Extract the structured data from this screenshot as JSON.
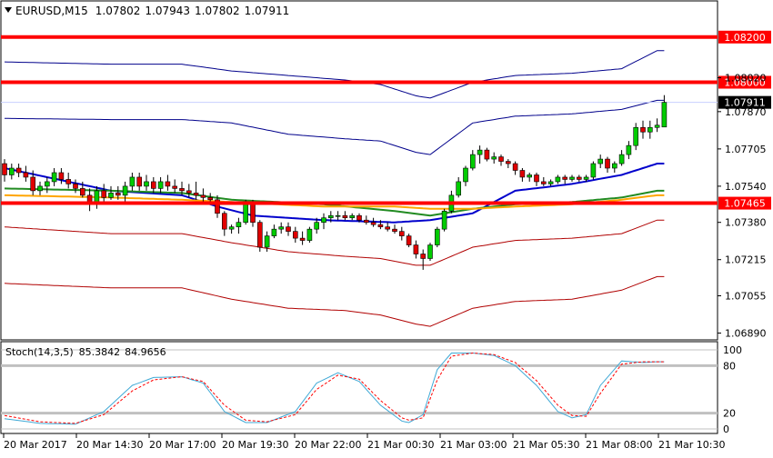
{
  "header": {
    "menu_icon": "triangle-down-icon",
    "symbol": "EURUSD,M15",
    "ohlc": [
      "1.07802",
      "1.07943",
      "1.07802",
      "1.07911"
    ]
  },
  "price_axis": {
    "ticks": [
      "1.08020",
      "1.07870",
      "1.07705",
      "1.07540",
      "1.07380",
      "1.07215",
      "1.07055",
      "1.06890"
    ],
    "current_price": "1.07911"
  },
  "levels": [
    {
      "price": 1.082,
      "label": "1.08200"
    },
    {
      "price": 1.08,
      "label": "1.08000"
    },
    {
      "price": 1.07465,
      "label": "1.07465"
    }
  ],
  "oscillator": {
    "title": "Stoch(14,3,5)",
    "main_value": "85.3842",
    "signal_value": "84.9656",
    "levels": [
      "100",
      "80",
      "20",
      "0"
    ]
  },
  "time_axis": [
    "20 Mar 2017",
    "20 Mar 14:30",
    "20 Mar 17:00",
    "20 Mar 19:30",
    "20 Mar 22:00",
    "21 Mar 00:30",
    "21 Mar 03:00",
    "21 Mar 05:30",
    "21 Mar 08:00",
    "21 Mar 10:30"
  ],
  "colors": {
    "level_line": "#ff0000",
    "bull_candle": "#00cc00",
    "bear_candle": "#e00000",
    "candle_wick": "#000000",
    "upper_envelope": "#00008b",
    "lower_envelope": "#b00000",
    "fast_ma": "#0000cc",
    "mid_ma": "#228b22",
    "slow_ma": "#ffa500",
    "stoch_main": "#3fa9d6",
    "stoch_signal": "#ff0000",
    "grid": "#c0c0c0"
  },
  "chart_data": {
    "type": "candlestick",
    "candles": [
      [
        1.0764,
        1.0766,
        1.0756,
        1.0759
      ],
      [
        1.0759,
        1.0764,
        1.0757,
        1.0762
      ],
      [
        1.0762,
        1.0764,
        1.0758,
        1.076
      ],
      [
        1.076,
        1.0763,
        1.0756,
        1.0758
      ],
      [
        1.0758,
        1.0761,
        1.075,
        1.0752
      ],
      [
        1.0752,
        1.0756,
        1.075,
        1.0754
      ],
      [
        1.0754,
        1.0758,
        1.0751,
        1.0756
      ],
      [
        1.0756,
        1.0762,
        1.0754,
        1.076
      ],
      [
        1.076,
        1.0762,
        1.0755,
        1.0757
      ],
      [
        1.0757,
        1.076,
        1.0753,
        1.0755
      ],
      [
        1.0755,
        1.0757,
        1.0751,
        1.0753
      ],
      [
        1.0753,
        1.0756,
        1.0749,
        1.075
      ],
      [
        1.075,
        1.0753,
        1.0743,
        1.0746
      ],
      [
        1.0746,
        1.0754,
        1.0744,
        1.0752
      ],
      [
        1.0752,
        1.0755,
        1.0747,
        1.0749
      ],
      [
        1.0749,
        1.0754,
        1.0748,
        1.0751
      ],
      [
        1.0751,
        1.0754,
        1.0748,
        1.075
      ],
      [
        1.075,
        1.0756,
        1.0746,
        1.0754
      ],
      [
        1.0754,
        1.076,
        1.0752,
        1.0758
      ],
      [
        1.0758,
        1.076,
        1.0752,
        1.0754
      ],
      [
        1.0754,
        1.0759,
        1.0752,
        1.0756
      ],
      [
        1.0756,
        1.0758,
        1.0751,
        1.0753
      ],
      [
        1.0753,
        1.0758,
        1.0751,
        1.0756
      ],
      [
        1.0756,
        1.0759,
        1.0752,
        1.0754
      ],
      [
        1.0754,
        1.0757,
        1.0751,
        1.0753
      ],
      [
        1.0753,
        1.0756,
        1.075,
        1.0752
      ],
      [
        1.0752,
        1.0755,
        1.0749,
        1.0751
      ],
      [
        1.0751,
        1.0756,
        1.0748,
        1.075
      ],
      [
        1.075,
        1.0753,
        1.0747,
        1.0749
      ],
      [
        1.0749,
        1.0751,
        1.0747,
        1.0748
      ],
      [
        1.0748,
        1.075,
        1.074,
        1.0742
      ],
      [
        1.0742,
        1.0743,
        1.0732,
        1.0735
      ],
      [
        1.0735,
        1.0737,
        1.0733,
        1.0736
      ],
      [
        1.0736,
        1.074,
        1.0733,
        1.0738
      ],
      [
        1.0738,
        1.0748,
        1.0737,
        1.0746
      ],
      [
        1.0746,
        1.0748,
        1.0736,
        1.0738
      ],
      [
        1.0738,
        1.0739,
        1.0725,
        1.0727
      ],
      [
        1.0727,
        1.0734,
        1.0725,
        1.0732
      ],
      [
        1.0732,
        1.0737,
        1.0731,
        1.0735
      ],
      [
        1.0735,
        1.0738,
        1.0733,
        1.0736
      ],
      [
        1.0736,
        1.0738,
        1.0732,
        1.0734
      ],
      [
        1.0734,
        1.0736,
        1.0729,
        1.0731
      ],
      [
        1.0731,
        1.0734,
        1.0728,
        1.073
      ],
      [
        1.073,
        1.0736,
        1.0729,
        1.0735
      ],
      [
        1.0735,
        1.074,
        1.0733,
        1.0738
      ],
      [
        1.0738,
        1.0742,
        1.0735,
        1.074
      ],
      [
        1.074,
        1.0743,
        1.0738,
        1.0741
      ],
      [
        1.0741,
        1.0743,
        1.0739,
        1.0741
      ],
      [
        1.0741,
        1.0743,
        1.0739,
        1.074
      ],
      [
        1.074,
        1.0742,
        1.0739,
        1.0741
      ],
      [
        1.0741,
        1.0742,
        1.0738,
        1.0739
      ],
      [
        1.0739,
        1.0741,
        1.0737,
        1.0738
      ],
      [
        1.0738,
        1.074,
        1.0736,
        1.0737
      ],
      [
        1.0737,
        1.0739,
        1.0735,
        1.0736
      ],
      [
        1.0736,
        1.0738,
        1.0734,
        1.0735
      ],
      [
        1.0735,
        1.0737,
        1.0733,
        1.0734
      ],
      [
        1.0734,
        1.0736,
        1.073,
        1.0732
      ],
      [
        1.0732,
        1.0733,
        1.0727,
        1.0728
      ],
      [
        1.0728,
        1.073,
        1.0722,
        1.0724
      ],
      [
        1.0724,
        1.0726,
        1.0717,
        1.0722
      ],
      [
        1.0722,
        1.0729,
        1.0721,
        1.0728
      ],
      [
        1.0728,
        1.0736,
        1.0727,
        1.0735
      ],
      [
        1.0735,
        1.0744,
        1.0734,
        1.0743
      ],
      [
        1.0743,
        1.0752,
        1.0742,
        1.075
      ],
      [
        1.075,
        1.0758,
        1.0749,
        1.0756
      ],
      [
        1.0756,
        1.0763,
        1.0754,
        1.0762
      ],
      [
        1.0762,
        1.077,
        1.0761,
        1.0768
      ],
      [
        1.0768,
        1.0772,
        1.0764,
        1.077
      ],
      [
        1.077,
        1.0771,
        1.0765,
        1.0766
      ],
      [
        1.0766,
        1.0769,
        1.0764,
        1.0767
      ],
      [
        1.0767,
        1.0768,
        1.0763,
        1.0765
      ],
      [
        1.0765,
        1.0766,
        1.0762,
        1.0764
      ],
      [
        1.0764,
        1.0765,
        1.0759,
        1.0761
      ],
      [
        1.0761,
        1.0762,
        1.0756,
        1.0758
      ],
      [
        1.0758,
        1.076,
        1.0756,
        1.0759
      ],
      [
        1.0759,
        1.076,
        1.0754,
        1.0756
      ],
      [
        1.0756,
        1.0758,
        1.0754,
        1.0755
      ],
      [
        1.0755,
        1.0757,
        1.0754,
        1.0756
      ],
      [
        1.0756,
        1.0759,
        1.0755,
        1.0758
      ],
      [
        1.0758,
        1.0759,
        1.0755,
        1.0757
      ],
      [
        1.0757,
        1.0759,
        1.0756,
        1.0758
      ],
      [
        1.0758,
        1.0759,
        1.0756,
        1.0757
      ],
      [
        1.0757,
        1.0759,
        1.0756,
        1.0758
      ],
      [
        1.0758,
        1.0765,
        1.0757,
        1.0764
      ],
      [
        1.0764,
        1.0768,
        1.0762,
        1.0766
      ],
      [
        1.0766,
        1.0767,
        1.076,
        1.0762
      ],
      [
        1.0762,
        1.0765,
        1.076,
        1.0764
      ],
      [
        1.0764,
        1.077,
        1.0763,
        1.0768
      ],
      [
        1.0768,
        1.0774,
        1.0766,
        1.0772
      ],
      [
        1.0772,
        1.0782,
        1.077,
        1.078
      ],
      [
        1.078,
        1.0783,
        1.0775,
        1.0778
      ],
      [
        1.0778,
        1.0783,
        1.0775,
        1.078
      ],
      [
        1.078,
        1.0784,
        1.0778,
        1.0781
      ],
      [
        1.07802,
        1.07943,
        1.07802,
        1.07911
      ]
    ],
    "envelopes": [
      {
        "anchors": [
          [
            0,
            1.0784
          ],
          [
            15,
            1.07835
          ],
          [
            25,
            1.07835
          ],
          [
            32,
            1.0782
          ],
          [
            40,
            1.0777
          ],
          [
            48,
            1.0775
          ],
          [
            53,
            1.0774
          ],
          [
            58,
            1.0769
          ],
          [
            60,
            1.0768
          ],
          [
            66,
            1.0782
          ],
          [
            72,
            1.0785
          ],
          [
            80,
            1.0786
          ],
          [
            87,
            1.0788
          ],
          [
            92,
            1.0792
          ]
        ],
        "color": "upper_envelope"
      },
      {
        "anchors": [
          [
            0,
            1.0809
          ],
          [
            15,
            1.0808
          ],
          [
            25,
            1.0808
          ],
          [
            32,
            1.0805
          ],
          [
            40,
            1.0803
          ],
          [
            48,
            1.0801
          ],
          [
            53,
            1.0799
          ],
          [
            58,
            1.0794
          ],
          [
            60,
            1.0793
          ],
          [
            66,
            1.08
          ],
          [
            72,
            1.0803
          ],
          [
            80,
            1.0804
          ],
          [
            87,
            1.0806
          ],
          [
            92,
            1.0814
          ]
        ],
        "color": "upper_envelope"
      },
      {
        "anchors": [
          [
            0,
            1.0736
          ],
          [
            15,
            1.0733
          ],
          [
            25,
            1.0733
          ],
          [
            32,
            1.0729
          ],
          [
            40,
            1.0725
          ],
          [
            48,
            1.0723
          ],
          [
            53,
            1.0722
          ],
          [
            58,
            1.0719
          ],
          [
            60,
            1.0719
          ],
          [
            66,
            1.0727
          ],
          [
            72,
            1.073
          ],
          [
            80,
            1.0731
          ],
          [
            87,
            1.0733
          ],
          [
            92,
            1.0739
          ]
        ],
        "color": "lower_envelope"
      },
      {
        "anchors": [
          [
            0,
            1.0711
          ],
          [
            15,
            1.0709
          ],
          [
            25,
            1.0709
          ],
          [
            32,
            1.0704
          ],
          [
            40,
            1.07
          ],
          [
            48,
            1.0699
          ],
          [
            53,
            1.0697
          ],
          [
            58,
            1.0693
          ],
          [
            60,
            1.0692
          ],
          [
            66,
            1.07
          ],
          [
            72,
            1.0703
          ],
          [
            80,
            1.0704
          ],
          [
            87,
            1.0708
          ],
          [
            92,
            1.0714
          ]
        ],
        "color": "lower_envelope"
      }
    ],
    "moving_averages": [
      {
        "anchors": [
          [
            0,
            1.0762
          ],
          [
            6,
            1.0758
          ],
          [
            15,
            1.0752
          ],
          [
            25,
            1.075
          ],
          [
            30,
            1.0745
          ],
          [
            35,
            1.0741
          ],
          [
            45,
            1.0739
          ],
          [
            55,
            1.0738
          ],
          [
            60,
            1.0739
          ],
          [
            66,
            1.0742
          ],
          [
            72,
            1.0752
          ],
          [
            80,
            1.0755
          ],
          [
            87,
            1.0759
          ],
          [
            92,
            1.0764
          ]
        ],
        "color": "fast_ma"
      },
      {
        "anchors": [
          [
            0,
            1.0753
          ],
          [
            15,
            1.0752
          ],
          [
            25,
            1.0751
          ],
          [
            32,
            1.0748
          ],
          [
            45,
            1.0746
          ],
          [
            55,
            1.0743
          ],
          [
            60,
            1.0741
          ],
          [
            66,
            1.0744
          ],
          [
            72,
            1.0746
          ],
          [
            80,
            1.0747
          ],
          [
            87,
            1.0749
          ],
          [
            92,
            1.0752
          ]
        ],
        "color": "mid_ma"
      },
      {
        "anchors": [
          [
            0,
            1.075
          ],
          [
            15,
            1.0749
          ],
          [
            25,
            1.0748
          ],
          [
            32,
            1.0747
          ],
          [
            45,
            1.0745
          ],
          [
            55,
            1.0745
          ],
          [
            60,
            1.0744
          ],
          [
            66,
            1.0744
          ],
          [
            72,
            1.0745
          ],
          [
            80,
            1.0746
          ],
          [
            87,
            1.0748
          ],
          [
            92,
            1.075
          ]
        ],
        "color": "slow_ma"
      }
    ],
    "stochastic": {
      "main": [
        [
          0,
          13
        ],
        [
          5,
          7
        ],
        [
          10,
          6
        ],
        [
          14,
          22
        ],
        [
          18,
          55
        ],
        [
          21,
          65
        ],
        [
          25,
          66
        ],
        [
          28,
          58
        ],
        [
          31,
          22
        ],
        [
          34,
          8
        ],
        [
          37,
          8
        ],
        [
          41,
          22
        ],
        [
          44,
          58
        ],
        [
          47,
          71
        ],
        [
          50,
          60
        ],
        [
          53,
          30
        ],
        [
          56,
          10
        ],
        [
          57,
          8
        ],
        [
          59,
          18
        ],
        [
          61,
          75
        ],
        [
          63,
          96
        ],
        [
          66,
          96
        ],
        [
          69,
          93
        ],
        [
          72,
          80
        ],
        [
          75,
          55
        ],
        [
          78,
          22
        ],
        [
          80,
          14
        ],
        [
          82,
          18
        ],
        [
          84,
          55
        ],
        [
          87,
          86
        ],
        [
          90,
          84
        ],
        [
          92,
          85
        ]
      ],
      "signal": [
        [
          0,
          17
        ],
        [
          5,
          9
        ],
        [
          10,
          7
        ],
        [
          14,
          18
        ],
        [
          18,
          48
        ],
        [
          21,
          62
        ],
        [
          25,
          66
        ],
        [
          28,
          60
        ],
        [
          31,
          30
        ],
        [
          34,
          11
        ],
        [
          37,
          9
        ],
        [
          41,
          18
        ],
        [
          44,
          50
        ],
        [
          47,
          68
        ],
        [
          50,
          63
        ],
        [
          53,
          36
        ],
        [
          56,
          14
        ],
        [
          57,
          11
        ],
        [
          59,
          14
        ],
        [
          61,
          62
        ],
        [
          63,
          92
        ],
        [
          66,
          96
        ],
        [
          69,
          94
        ],
        [
          72,
          84
        ],
        [
          75,
          61
        ],
        [
          78,
          30
        ],
        [
          80,
          17
        ],
        [
          82,
          16
        ],
        [
          84,
          45
        ],
        [
          87,
          82
        ],
        [
          90,
          85
        ],
        [
          92,
          85
        ]
      ]
    },
    "ylim": [
      1.0686,
      1.0836
    ]
  }
}
